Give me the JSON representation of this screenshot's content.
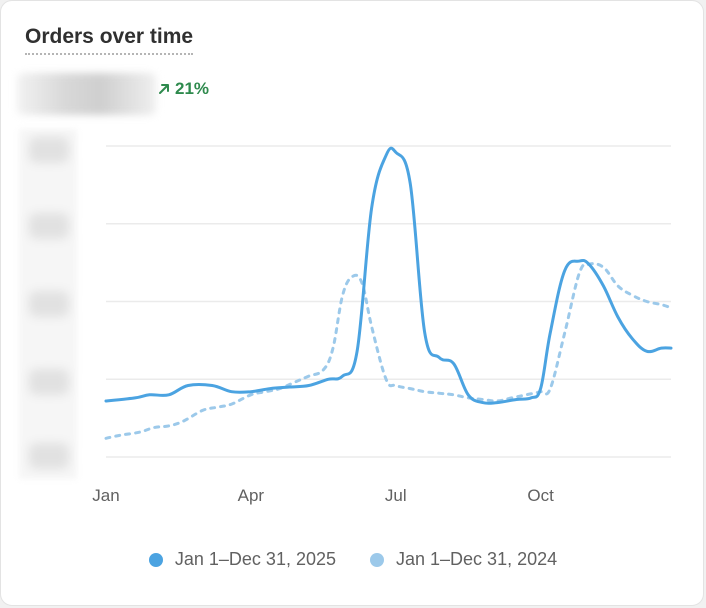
{
  "card": {
    "title": "Orders over time",
    "change_percent": "21%",
    "change_direction": "up"
  },
  "colors": {
    "current": "#4ba3e1",
    "previous": "#9cc9ea",
    "positive": "#2e8a4d",
    "grid": "#ebebeb"
  },
  "chart_data": {
    "type": "line",
    "title": "Orders over time",
    "x_ticks": [
      "Jan",
      "Apr",
      "Jul",
      "Oct"
    ],
    "x_tick_months": [
      1,
      4,
      7,
      10
    ],
    "xlim": [
      1,
      12.7
    ],
    "ylim": [
      0,
      100
    ],
    "y_gridlines": [
      0,
      25,
      50,
      75,
      100
    ],
    "y_tick_labels_obscured": true,
    "legend_position": "bottom",
    "series": [
      {
        "name": "Jan 1–Dec 31, 2025",
        "style": "solid",
        "x": [
          1.0,
          1.6,
          1.9,
          2.3,
          2.7,
          3.2,
          3.6,
          4.0,
          4.4,
          4.8,
          5.2,
          5.6,
          5.9,
          6.2,
          6.5,
          6.8,
          7.0,
          7.3,
          7.6,
          7.9,
          8.2,
          8.5,
          8.8,
          9.1,
          9.5,
          9.8,
          10.0,
          10.2,
          10.5,
          10.8,
          11.0,
          11.3,
          11.6,
          11.9,
          12.2,
          12.5,
          12.7
        ],
        "values": [
          18,
          19,
          20,
          20,
          23,
          23,
          21,
          21,
          22,
          22.5,
          23,
          25,
          26,
          34,
          80,
          97,
          98,
          88,
          40,
          32,
          30,
          20,
          17.5,
          17.5,
          18.5,
          19,
          22,
          40,
          60,
          63,
          62,
          55,
          45,
          38,
          34,
          35,
          35
        ]
      },
      {
        "name": "Jan 1–Dec 31, 2024",
        "style": "dashed",
        "x": [
          1.0,
          1.3,
          1.7,
          2.0,
          2.3,
          2.6,
          3.0,
          3.3,
          3.6,
          4.0,
          4.3,
          4.6,
          4.9,
          5.2,
          5.5,
          5.7,
          5.9,
          6.1,
          6.3,
          6.5,
          6.8,
          7.0,
          7.3,
          7.6,
          7.9,
          8.2,
          8.5,
          8.8,
          9.1,
          9.4,
          9.7,
          10.0,
          10.2,
          10.5,
          10.8,
          11.0,
          11.3,
          11.6,
          11.9,
          12.2,
          12.5,
          12.7
        ],
        "values": [
          6,
          7,
          8,
          9.5,
          10,
          11.5,
          15,
          16,
          17,
          20,
          21,
          22,
          24,
          26,
          28,
          35,
          52,
          58,
          56,
          42,
          25,
          23,
          22,
          21,
          20.5,
          20,
          19,
          18.5,
          18,
          19,
          20,
          21,
          22,
          40,
          59,
          62,
          61,
          55,
          52,
          50,
          49,
          48
        ]
      }
    ]
  },
  "legend": {
    "items": [
      {
        "label": "Jan 1–Dec 31, 2025",
        "color": "#4ba3e1"
      },
      {
        "label": "Jan 1–Dec 31, 2024",
        "color": "#9cc9ea"
      }
    ]
  }
}
